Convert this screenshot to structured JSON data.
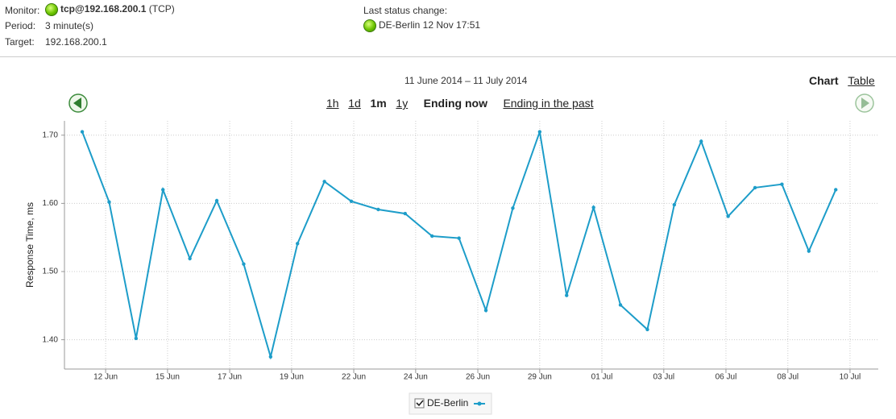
{
  "header": {
    "monitor_label": "Monitor:",
    "monitor_value": "tcp@192.168.200.1",
    "monitor_protocol": "(TCP)",
    "period_label": "Period:",
    "period_value": "3 minute(s)",
    "target_label": "Target:",
    "target_value": "192.168.200.1",
    "status_label": "Last status change:",
    "status_value": "DE-Berlin 12 Nov 17:51"
  },
  "controls": {
    "range": "11 June 2014 – 11 July 2014",
    "zooms": [
      "1h",
      "1d",
      "1m",
      "1y"
    ],
    "ending_now": "Ending now",
    "ending_past": "Ending in the past",
    "chart": "Chart",
    "table": "Table"
  },
  "chart_data": {
    "type": "line",
    "ylabel": "Response Time, ms",
    "x": [
      0,
      1,
      2,
      3,
      4,
      5,
      6,
      7,
      8,
      9,
      10,
      11,
      12,
      13,
      14,
      15,
      16,
      17,
      18,
      19,
      20,
      21,
      22,
      23,
      24,
      25,
      26,
      27,
      28
    ],
    "series": [
      {
        "name": "DE-Berlin",
        "color": "#1d9dc9",
        "values": [
          1.705,
          1.602,
          1.402,
          1.62,
          1.519,
          1.604,
          1.511,
          1.375,
          1.541,
          1.632,
          1.603,
          1.591,
          1.585,
          1.552,
          1.549,
          1.443,
          1.593,
          1.705,
          1.465,
          1.594,
          1.451,
          1.415,
          1.598,
          1.691,
          1.581,
          1.623,
          1.628,
          1.53,
          1.62
        ]
      }
    ],
    "xlim": [
      -0.66,
      29.58
    ],
    "xticks": [
      {
        "value": 0.87,
        "label": "12 Jun"
      },
      {
        "value": 3.17,
        "label": "15 Jun"
      },
      {
        "value": 5.48,
        "label": "17 Jun"
      },
      {
        "value": 7.78,
        "label": "19 Jun"
      },
      {
        "value": 10.09,
        "label": "22 Jun"
      },
      {
        "value": 12.39,
        "label": "24 Jun"
      },
      {
        "value": 14.7,
        "label": "26 Jun"
      },
      {
        "value": 17.0,
        "label": "29 Jun"
      },
      {
        "value": 19.31,
        "label": "01 Jul"
      },
      {
        "value": 21.61,
        "label": "03 Jul"
      },
      {
        "value": 23.92,
        "label": "06 Jul"
      },
      {
        "value": 26.22,
        "label": "08 Jul"
      },
      {
        "value": 28.53,
        "label": "10 Jul"
      }
    ],
    "ylim": [
      1.357,
      1.721
    ],
    "yticks": [
      {
        "value": 1.4,
        "label": "1.40"
      },
      {
        "value": 1.5,
        "label": "1.50"
      },
      {
        "value": 1.6,
        "label": "1.60"
      },
      {
        "value": 1.7,
        "label": "1.70"
      }
    ],
    "grid": true
  }
}
